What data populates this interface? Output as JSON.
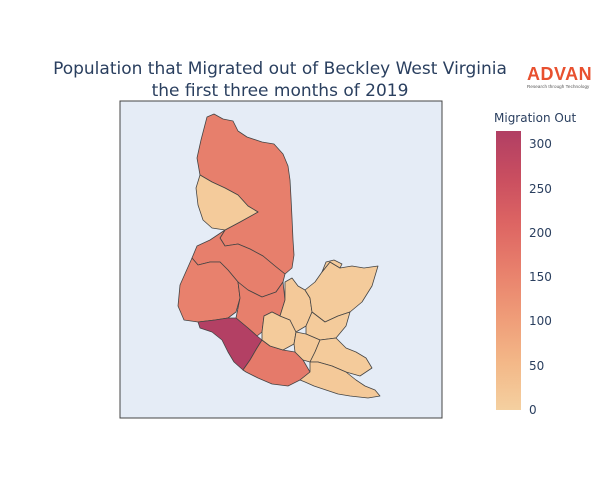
{
  "title": {
    "line1": "Population that Migrated out of Beckley West Virginia",
    "line2": "the first three months of 2019"
  },
  "logo": {
    "text": "ADVAN",
    "tagline": "Research through Technology",
    "color": "#e8502f"
  },
  "colorbar": {
    "title": "Migration Out",
    "min": 0,
    "max": 315,
    "ticks": [
      "300",
      "250",
      "200",
      "150",
      "100",
      "50",
      "0"
    ],
    "tick_values": [
      300,
      250,
      200,
      150,
      100,
      50,
      0
    ],
    "colors": [
      "#f4d0a0",
      "#f3b888",
      "#ef9c78",
      "#e8806c",
      "#dd6563",
      "#c94e60",
      "#b13f64"
    ]
  },
  "map": {
    "background": "#e5ecf6",
    "border_color": "#444444",
    "regions": [
      {
        "name": "north",
        "value": 160
      },
      {
        "name": "north-enclave",
        "value": 10
      },
      {
        "name": "central",
        "value": 160
      },
      {
        "name": "west",
        "value": 155
      },
      {
        "name": "south-center",
        "value": 160
      },
      {
        "name": "dark-southwest",
        "value": 310
      },
      {
        "name": "southern",
        "value": 170
      },
      {
        "name": "east-1",
        "value": 10
      },
      {
        "name": "east-2",
        "value": 15
      },
      {
        "name": "east-3",
        "value": 10
      },
      {
        "name": "east-4",
        "value": 10
      },
      {
        "name": "east-5",
        "value": 15
      },
      {
        "name": "east-6",
        "value": 10
      },
      {
        "name": "southeast",
        "value": 15
      },
      {
        "name": "southeast-2",
        "value": 10
      }
    ]
  }
}
